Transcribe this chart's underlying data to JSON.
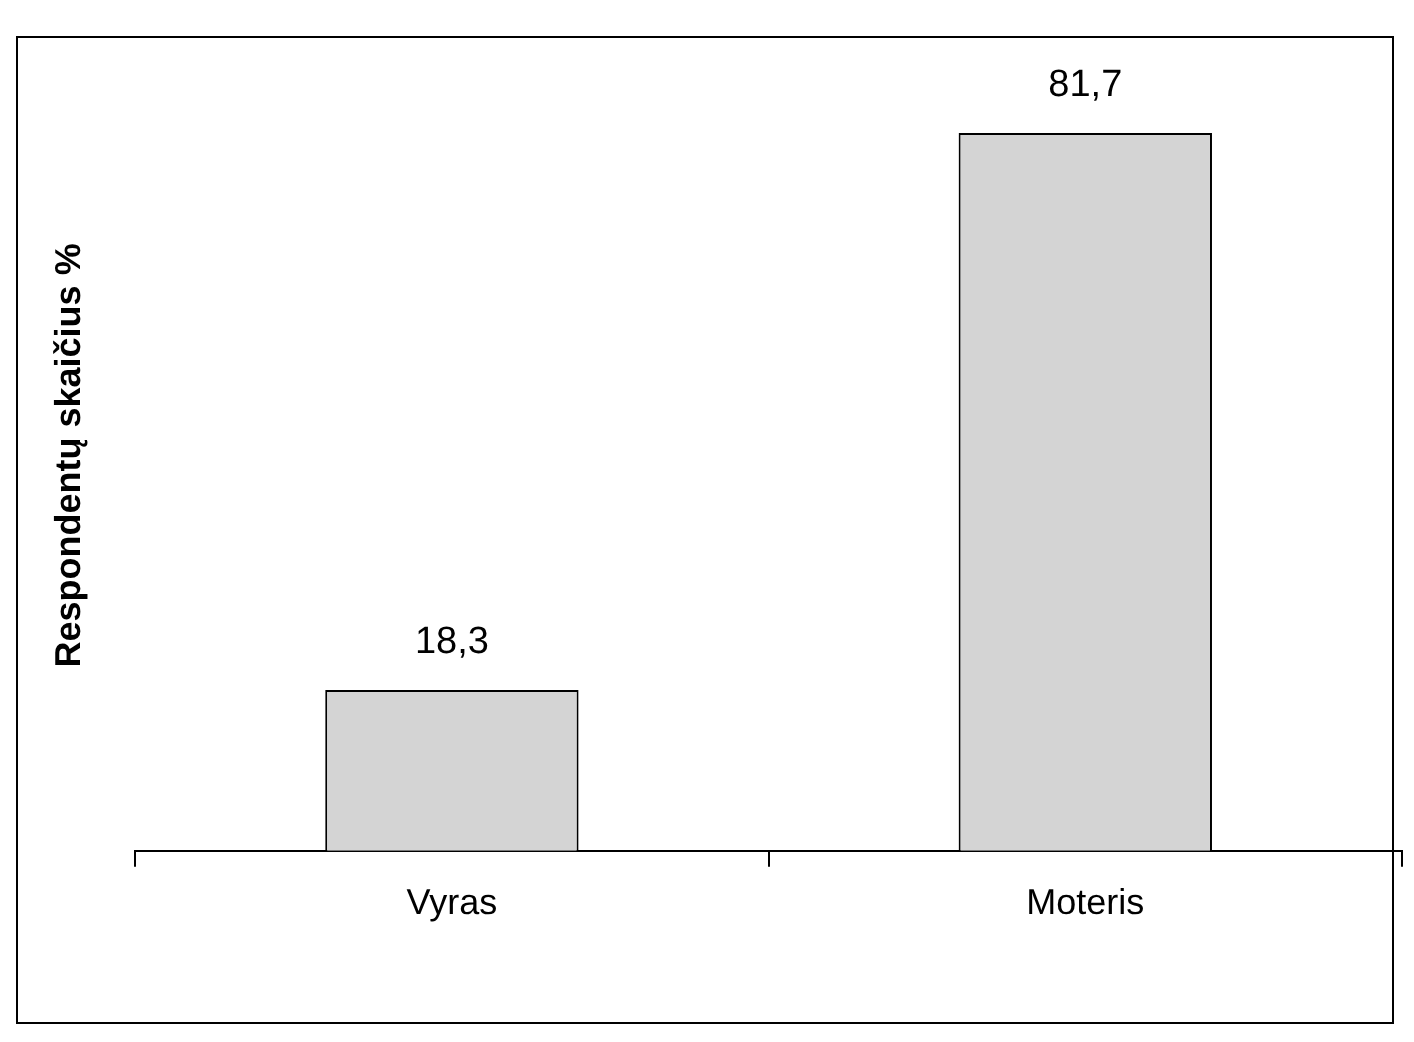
{
  "chart_data": {
    "type": "bar",
    "ylabel": "Respondentų skaičius %",
    "categories": [
      "Vyras",
      "Moteris"
    ],
    "values": [
      18.3,
      81.7
    ],
    "value_labels": [
      "18,3",
      "81,7"
    ],
    "color": "#d4d4d4",
    "grid": false,
    "legend": false
  }
}
